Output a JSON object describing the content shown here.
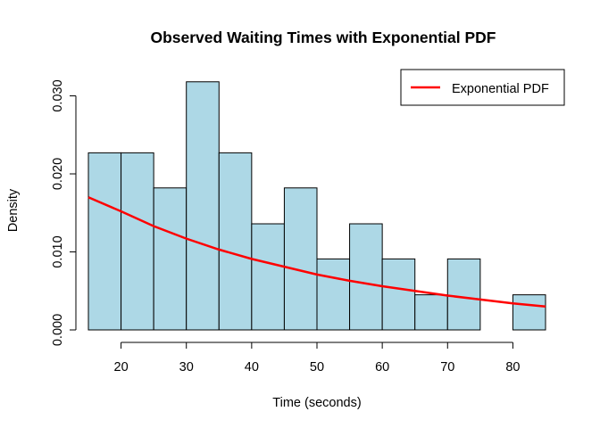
{
  "chart_data": {
    "type": "histogram",
    "title": "Observed Waiting Times with Exponential PDF",
    "xlabel": "Time (seconds)",
    "ylabel": "Density",
    "xlim": [
      15,
      85
    ],
    "ylim": [
      0,
      0.032
    ],
    "x_ticks": [
      20,
      30,
      40,
      50,
      60,
      70,
      80
    ],
    "y_ticks": [
      0.0,
      0.01,
      0.02,
      0.03
    ],
    "x_tick_labels": [
      "20",
      "30",
      "40",
      "50",
      "60",
      "70",
      "80"
    ],
    "y_tick_labels": [
      "0.000",
      "0.010",
      "0.020",
      "0.030"
    ],
    "bin_edges": [
      15,
      20,
      25,
      30,
      35,
      40,
      45,
      50,
      55,
      60,
      65,
      70,
      75,
      80,
      85
    ],
    "densities": [
      0.0227,
      0.0227,
      0.0182,
      0.0318,
      0.0227,
      0.0136,
      0.0182,
      0.0091,
      0.0136,
      0.0091,
      0.0045,
      0.0091,
      0.0,
      0.0045
    ],
    "bar_fill": "#add8e6",
    "bar_stroke": "#000000",
    "curve": {
      "name": "Exponential PDF",
      "color": "#ff0000",
      "x": [
        15,
        20,
        25,
        30,
        35,
        40,
        45,
        50,
        55,
        60,
        65,
        70,
        75,
        80,
        85
      ],
      "y": [
        0.017,
        0.0152,
        0.0133,
        0.0117,
        0.0103,
        0.0091,
        0.0081,
        0.0071,
        0.0063,
        0.0056,
        0.005,
        0.0044,
        0.0039,
        0.0034,
        0.003
      ]
    },
    "legend": {
      "placement": "top-right",
      "entries": [
        "Exponential PDF"
      ]
    },
    "grid": false
  }
}
